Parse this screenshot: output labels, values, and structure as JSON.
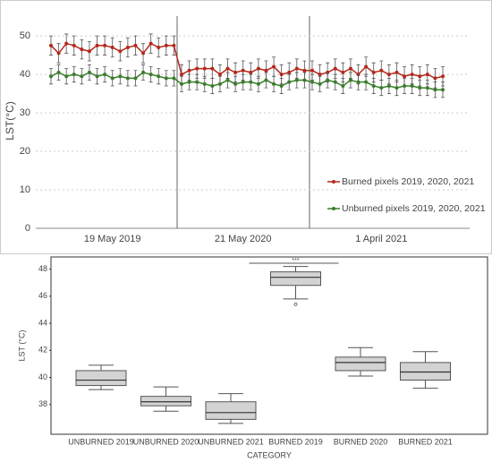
{
  "chart_data": [
    {
      "type": "line",
      "ylabel": "LST(°C)",
      "categories": [
        null,
        null,
        null,
        null,
        null,
        null,
        null,
        null,
        "19 May 2019",
        null,
        null,
        null,
        null,
        null,
        null,
        null,
        null,
        null,
        null,
        null,
        null,
        null,
        null,
        null,
        null,
        "21 May 2020",
        null,
        null,
        null,
        null,
        null,
        null,
        null,
        null,
        null,
        null,
        null,
        null,
        null,
        null,
        null,
        null,
        null,
        "1 April 2021",
        null,
        null,
        null,
        null,
        null,
        null,
        null,
        null
      ],
      "ylim": [
        0,
        57
      ],
      "yticks": [
        0,
        10,
        20,
        30,
        40,
        50
      ],
      "grid": true,
      "legend": "right",
      "series": [
        {
          "name": "Burned pixels 2019, 2020, 2021",
          "color": "#b5281c",
          "values": [
            47.5,
            45.5,
            48,
            47.5,
            46.5,
            46,
            47.5,
            47.5,
            47,
            46,
            47,
            47.5,
            45.5,
            48,
            47,
            47.5,
            47.5,
            40,
            41,
            41.5,
            41.5,
            41.5,
            40,
            41.5,
            40.5,
            41,
            40.5,
            41.5,
            41,
            42,
            40,
            40.5,
            41.5,
            41,
            41,
            40,
            40.5,
            41.5,
            40.5,
            41.5,
            40,
            42,
            40.5,
            41,
            40,
            40.5,
            39.5,
            40,
            39.5,
            40,
            39,
            39.5
          ],
          "errors": [
            2.5,
            2.5,
            2.5,
            2.5,
            2.5,
            2.5,
            2.5,
            2.5,
            2.5,
            2.5,
            2.5,
            2.5,
            2.5,
            2.5,
            2.5,
            2.5,
            2.5,
            2.5,
            2.5,
            2.5,
            2.5,
            2.5,
            2.5,
            2.5,
            2.5,
            2.5,
            2.5,
            2.5,
            2.5,
            2.5,
            2.5,
            2.5,
            2.5,
            2.5,
            2.5,
            2.5,
            2.5,
            2.5,
            2.5,
            2.5,
            2.5,
            2.5,
            2.5,
            2.5,
            2.5,
            2.5,
            2.5,
            2.5,
            2.5,
            2.5,
            2.5,
            2.5
          ]
        },
        {
          "name": "Unburned pixels 2019, 2020, 2021",
          "color": "#3a7d2c",
          "values": [
            39.5,
            40.5,
            39.5,
            40,
            39.5,
            40.5,
            39.5,
            40,
            39,
            39.5,
            39,
            39,
            40.5,
            40,
            39.5,
            39,
            39,
            37.5,
            38,
            38,
            37.5,
            37,
            37.5,
            38.5,
            37.5,
            38,
            38,
            37.5,
            38.5,
            37.5,
            37,
            38,
            38.5,
            38.5,
            38,
            37.5,
            38.5,
            38,
            37,
            38.5,
            38,
            38,
            37,
            36.5,
            37,
            36.5,
            37,
            37,
            36.5,
            36.5,
            36,
            36
          ],
          "errors": [
            2,
            2,
            2,
            2,
            2,
            2,
            2,
            2,
            2,
            2,
            2,
            2,
            2,
            2,
            2,
            2,
            2,
            2,
            2,
            2,
            2,
            2,
            2,
            2,
            2,
            2,
            2,
            2,
            2,
            2,
            2,
            2,
            2,
            2,
            2,
            2,
            2,
            2,
            2,
            2,
            2,
            2,
            2,
            2,
            2,
            2,
            2,
            2,
            2,
            2,
            2,
            2
          ]
        }
      ]
    },
    {
      "type": "box",
      "xlabel": "CATEGORY",
      "ylabel": "LST (°C)",
      "categories": [
        "UNBURNED 2019",
        "UNBURNED 2020",
        "UNBURNED 2021",
        "BURNED 2019",
        "BURNED 2020",
        "BURNED 2021"
      ],
      "boxes": [
        {
          "min": 39.1,
          "q1": 39.4,
          "median": 39.8,
          "q3": 40.5,
          "max": 40.9
        },
        {
          "min": 37.5,
          "q1": 37.9,
          "median": 38.2,
          "q3": 38.6,
          "max": 39.3
        },
        {
          "min": 36.6,
          "q1": 36.9,
          "median": 37.4,
          "q3": 38.2,
          "max": 38.8
        },
        {
          "min": 45.8,
          "q1": 46.8,
          "median": 47.4,
          "q3": 47.8,
          "max": 48.2
        },
        {
          "min": 40.1,
          "q1": 40.5,
          "median": 41.1,
          "q3": 41.5,
          "max": 42.2
        },
        {
          "min": 39.2,
          "q1": 39.8,
          "median": 40.4,
          "q3": 41.1,
          "max": 41.9
        }
      ],
      "outliers": [
        [],
        [],
        [],
        [
          45.4
        ],
        [],
        []
      ],
      "color": "#d3d3d3",
      "annotation": "***",
      "ylim": [
        35.8,
        48.9
      ],
      "yticks": [
        38,
        40,
        42,
        44,
        46,
        48
      ]
    }
  ]
}
